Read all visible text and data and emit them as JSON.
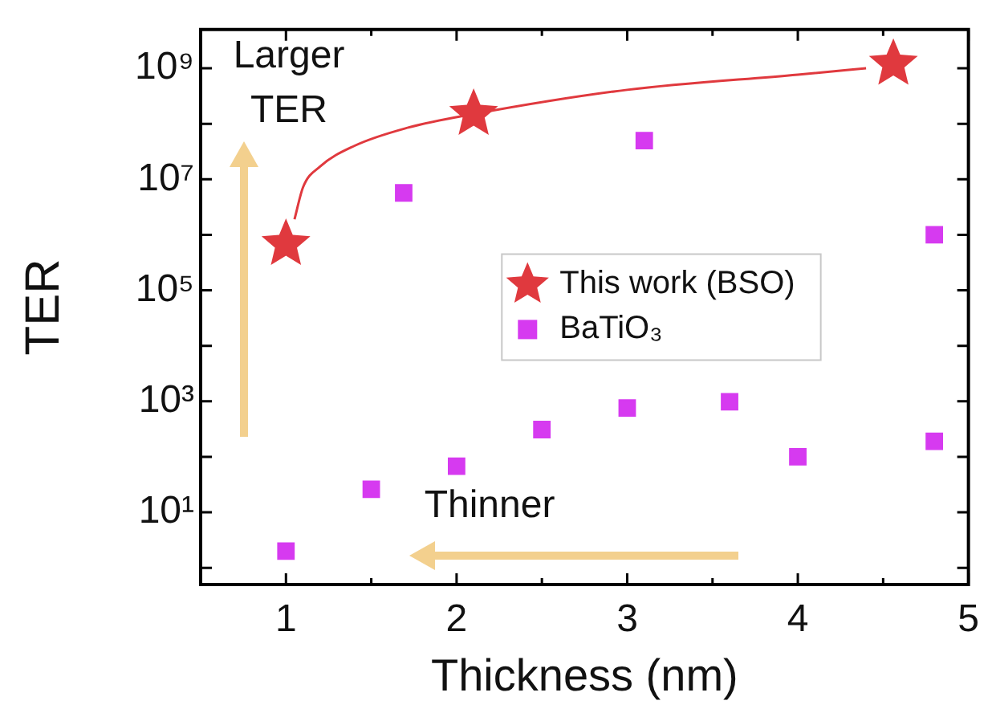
{
  "chart_data": {
    "type": "scatter",
    "xlabel": "Thickness (nm)",
    "ylabel": "TER",
    "log": "y",
    "grid": false,
    "legend": "right",
    "xlim": [
      0.5,
      5
    ],
    "xticks": [
      1,
      {
        "value": 1.5,
        "label": null
      },
      2,
      {
        "value": 2.5,
        "label": null
      },
      3,
      {
        "value": 3.5,
        "label": null
      },
      4,
      {
        "value": 4.5,
        "label": null
      },
      5
    ],
    "ylim": [
      0.5,
      5000000000
    ],
    "yticks": [
      {
        "value": 1,
        "label": null
      },
      {
        "value": 10,
        "label": "10¹"
      },
      {
        "value": 100,
        "label": null
      },
      {
        "value": 1000,
        "label": "10³"
      },
      {
        "value": 10000,
        "label": null
      },
      {
        "value": 100000,
        "label": "10⁵"
      },
      {
        "value": 1000000,
        "label": null
      },
      {
        "value": 10000000,
        "label": "10⁷"
      },
      {
        "value": 100000000,
        "label": null
      },
      {
        "value": 1000000000,
        "label": "10⁹"
      }
    ],
    "annotations": [
      "Larger TER",
      "Thinner"
    ],
    "series": [
      {
        "type": "line",
        "color": "#e0393e",
        "marker": "none",
        "line_style": "solid",
        "x": [
          1.05,
          1.1,
          1.2,
          1.4,
          1.7,
          2.1,
          3.0,
          4.0,
          4.4
        ],
        "values": [
          1900000,
          7200000,
          17000000,
          40000000,
          83000000,
          150000000,
          410000000,
          770000000,
          1000000000
        ]
      },
      {
        "name": "This work (BSO)",
        "color": "#e0393e",
        "marker": "star",
        "x": [
          1.0,
          2.1,
          4.56
        ],
        "values": [
          680000,
          150000000,
          1200000000
        ]
      },
      {
        "name": "BaTiO₃",
        "color": "#d63af0",
        "marker": "square",
        "x": [
          1.0,
          1.5,
          1.69,
          2.0,
          2.5,
          3.0,
          3.1,
          3.6,
          4.0,
          4.8,
          4.8
        ],
        "values": [
          2,
          26,
          5700000,
          68,
          310,
          760,
          50000000,
          980,
          100,
          1000000,
          190
        ]
      }
    ]
  }
}
